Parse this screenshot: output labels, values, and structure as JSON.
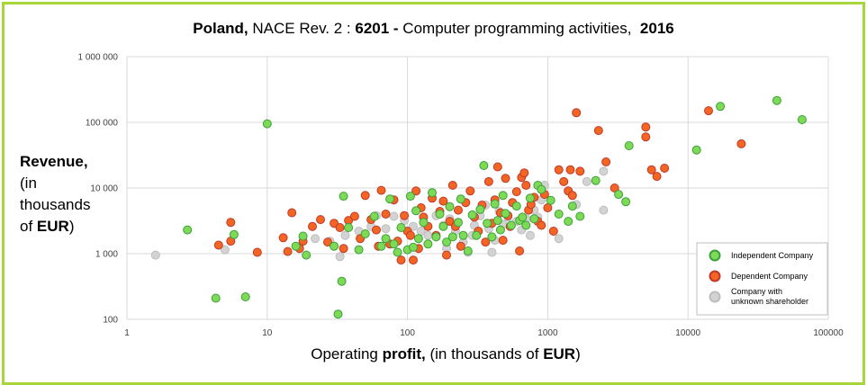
{
  "title": {
    "country": "Poland,",
    "mid": " NACE Rev. 2 : ",
    "code": "6201 -",
    "activity": " Computer programming activities, ",
    "year": "2016"
  },
  "axes": {
    "ylabel": {
      "line1": "Revenue,",
      "line2": "(in",
      "line3": "thousands",
      "line4_prefix": "of ",
      "line4_bold": "EUR",
      "line4_suffix": ")"
    },
    "xlabel": {
      "prefix": "Operating ",
      "bold1": "profit,",
      "mid": " (in thousands of ",
      "bold2": "EUR",
      "suffix": ")"
    }
  },
  "colors": {
    "independent": "#7ed957",
    "independent_stroke": "#3aa13a",
    "dependent": "#f26522",
    "dependent_stroke": "#c0392b",
    "unknown": "#d3d3d3",
    "unknown_stroke": "#bdbdbd",
    "grid": "#d9d9d9"
  },
  "legend": {
    "independent": "Independent Company",
    "dependent": "Dependent Company",
    "unknown_line1": "Company with",
    "unknown_line2": "unknown shareholder"
  },
  "chart_data": {
    "type": "scatter",
    "title": "Poland, NACE Rev. 2 : 6201 - Computer programming activities, 2016",
    "xlabel": "Operating profit, (in thousands of EUR)",
    "ylabel": "Revenue, (in thousands of EUR)",
    "xscale": "log",
    "yscale": "log",
    "xlim": [
      1,
      100000
    ],
    "ylim": [
      100,
      1000000
    ],
    "grid": true,
    "legend_position": "bottom-right",
    "x_ticks": [
      {
        "value": 1,
        "label": "1"
      },
      {
        "value": 10,
        "label": "10"
      },
      {
        "value": 100,
        "label": "100"
      },
      {
        "value": 1000,
        "label": "1000"
      },
      {
        "value": 10000,
        "label": "10000"
      },
      {
        "value": 100000,
        "label": "100000"
      }
    ],
    "y_ticks": [
      {
        "value": 100,
        "label": "100"
      },
      {
        "value": 1000,
        "label": "1 000"
      },
      {
        "value": 10000,
        "label": "10 000"
      },
      {
        "value": 100000,
        "label": "100 000"
      },
      {
        "value": 1000000,
        "label": "1 000 000"
      }
    ],
    "series": [
      {
        "name": "Company with unknown shareholder",
        "key": "unknown",
        "points": [
          [
            1.6,
            950
          ],
          [
            5,
            1150
          ],
          [
            22,
            1700
          ],
          [
            28,
            1550
          ],
          [
            33,
            900
          ],
          [
            36,
            1900
          ],
          [
            45,
            2200
          ],
          [
            55,
            2600
          ],
          [
            60,
            3800
          ],
          [
            70,
            2400
          ],
          [
            80,
            3700
          ],
          [
            95,
            3200
          ],
          [
            110,
            2600
          ],
          [
            125,
            2200
          ],
          [
            140,
            1900
          ],
          [
            160,
            3800
          ],
          [
            180,
            2700
          ],
          [
            190,
            1200
          ],
          [
            200,
            3400
          ],
          [
            220,
            2200
          ],
          [
            250,
            1500
          ],
          [
            270,
            1050
          ],
          [
            290,
            1900
          ],
          [
            300,
            2700
          ],
          [
            330,
            3800
          ],
          [
            360,
            5500
          ],
          [
            380,
            2400
          ],
          [
            400,
            1050
          ],
          [
            420,
            1600
          ],
          [
            450,
            4400
          ],
          [
            480,
            2800
          ],
          [
            520,
            3600
          ],
          [
            560,
            6000
          ],
          [
            600,
            3100
          ],
          [
            650,
            2300
          ],
          [
            700,
            3400
          ],
          [
            750,
            1900
          ],
          [
            800,
            4600
          ],
          [
            850,
            3600
          ],
          [
            900,
            6600
          ],
          [
            950,
            11000
          ],
          [
            1200,
            1700
          ],
          [
            1400,
            9000
          ],
          [
            1600,
            5600
          ],
          [
            1900,
            12500
          ],
          [
            2500,
            18000
          ],
          [
            2500,
            4600
          ]
        ]
      },
      {
        "name": "Dependent Company",
        "key": "dependent",
        "points": [
          [
            4.5,
            1350
          ],
          [
            5.5,
            1550
          ],
          [
            5.5,
            3000
          ],
          [
            8.5,
            1050
          ],
          [
            13,
            1750
          ],
          [
            14,
            1080
          ],
          [
            15,
            4200
          ],
          [
            17,
            1200
          ],
          [
            18,
            1550
          ],
          [
            21,
            2600
          ],
          [
            24,
            3300
          ],
          [
            27,
            1500
          ],
          [
            30,
            2900
          ],
          [
            33,
            2500
          ],
          [
            35,
            1200
          ],
          [
            38,
            3200
          ],
          [
            42,
            3700
          ],
          [
            46,
            1700
          ],
          [
            50,
            7700
          ],
          [
            55,
            3300
          ],
          [
            60,
            2300
          ],
          [
            62,
            1300
          ],
          [
            65,
            9200
          ],
          [
            70,
            4000
          ],
          [
            75,
            1400
          ],
          [
            80,
            6600
          ],
          [
            85,
            1550
          ],
          [
            90,
            800
          ],
          [
            95,
            3800
          ],
          [
            100,
            2200
          ],
          [
            105,
            1900
          ],
          [
            110,
            800
          ],
          [
            115,
            9000
          ],
          [
            120,
            1200
          ],
          [
            125,
            5000
          ],
          [
            130,
            3600
          ],
          [
            140,
            2600
          ],
          [
            150,
            7000
          ],
          [
            160,
            1900
          ],
          [
            170,
            4400
          ],
          [
            180,
            6300
          ],
          [
            190,
            950
          ],
          [
            200,
            3100
          ],
          [
            210,
            11000
          ],
          [
            220,
            2600
          ],
          [
            230,
            4600
          ],
          [
            240,
            1300
          ],
          [
            260,
            6000
          ],
          [
            280,
            9000
          ],
          [
            300,
            3600
          ],
          [
            320,
            2200
          ],
          [
            340,
            5500
          ],
          [
            360,
            1500
          ],
          [
            380,
            12500
          ],
          [
            400,
            2900
          ],
          [
            420,
            6600
          ],
          [
            440,
            21000
          ],
          [
            460,
            4200
          ],
          [
            480,
            1600
          ],
          [
            500,
            14000
          ],
          [
            520,
            3800
          ],
          [
            540,
            2600
          ],
          [
            560,
            6000
          ],
          [
            600,
            8800
          ],
          [
            630,
            1100
          ],
          [
            650,
            14500
          ],
          [
            680,
            17000
          ],
          [
            700,
            11000
          ],
          [
            730,
            4600
          ],
          [
            760,
            5600
          ],
          [
            800,
            7200
          ],
          [
            850,
            3100
          ],
          [
            900,
            2700
          ],
          [
            950,
            8000
          ],
          [
            1000,
            5000
          ],
          [
            1100,
            2200
          ],
          [
            1200,
            19000
          ],
          [
            1300,
            12500
          ],
          [
            1400,
            9000
          ],
          [
            1450,
            19000
          ],
          [
            1500,
            7700
          ],
          [
            1600,
            140000
          ],
          [
            1700,
            18000
          ],
          [
            2300,
            75000
          ],
          [
            2600,
            25000
          ],
          [
            3000,
            10000
          ],
          [
            5000,
            85000
          ],
          [
            5000,
            60000
          ],
          [
            5500,
            19000
          ],
          [
            6000,
            15000
          ],
          [
            6800,
            20000
          ],
          [
            14000,
            150000
          ],
          [
            24000,
            47000
          ]
        ]
      },
      {
        "name": "Independent Company",
        "key": "independent",
        "points": [
          [
            2.7,
            2300
          ],
          [
            4.3,
            210
          ],
          [
            5.8,
            1950
          ],
          [
            7,
            220
          ],
          [
            10,
            95000
          ],
          [
            16,
            1300
          ],
          [
            18,
            1850
          ],
          [
            19,
            950
          ],
          [
            30,
            1300
          ],
          [
            32,
            120
          ],
          [
            34,
            380
          ],
          [
            35,
            7500
          ],
          [
            38,
            2500
          ],
          [
            45,
            1150
          ],
          [
            50,
            2000
          ],
          [
            58,
            3700
          ],
          [
            65,
            1300
          ],
          [
            70,
            1700
          ],
          [
            75,
            6800
          ],
          [
            80,
            1400
          ],
          [
            85,
            1050
          ],
          [
            90,
            2500
          ],
          [
            100,
            1150
          ],
          [
            105,
            7500
          ],
          [
            110,
            1250
          ],
          [
            115,
            4500
          ],
          [
            120,
            1700
          ],
          [
            130,
            3000
          ],
          [
            140,
            1400
          ],
          [
            150,
            8500
          ],
          [
            160,
            1800
          ],
          [
            170,
            4000
          ],
          [
            180,
            2600
          ],
          [
            190,
            1500
          ],
          [
            200,
            5200
          ],
          [
            210,
            1800
          ],
          [
            230,
            3000
          ],
          [
            240,
            6800
          ],
          [
            250,
            1900
          ],
          [
            270,
            1100
          ],
          [
            290,
            3900
          ],
          [
            310,
            1900
          ],
          [
            330,
            4700
          ],
          [
            350,
            22000
          ],
          [
            370,
            2900
          ],
          [
            400,
            1800
          ],
          [
            420,
            5700
          ],
          [
            440,
            3200
          ],
          [
            460,
            2300
          ],
          [
            480,
            7700
          ],
          [
            500,
            4100
          ],
          [
            550,
            2700
          ],
          [
            600,
            5300
          ],
          [
            630,
            3200
          ],
          [
            660,
            3600
          ],
          [
            700,
            2700
          ],
          [
            750,
            7000
          ],
          [
            800,
            3400
          ],
          [
            850,
            11000
          ],
          [
            900,
            9500
          ],
          [
            1050,
            6500
          ],
          [
            1200,
            4000
          ],
          [
            1400,
            3100
          ],
          [
            1500,
            5300
          ],
          [
            1700,
            3700
          ],
          [
            2200,
            13000
          ],
          [
            3200,
            8000
          ],
          [
            3600,
            6200
          ],
          [
            3800,
            44000
          ],
          [
            11500,
            38000
          ],
          [
            17000,
            175000
          ],
          [
            43000,
            215000
          ],
          [
            65000,
            110000
          ]
        ]
      }
    ]
  }
}
